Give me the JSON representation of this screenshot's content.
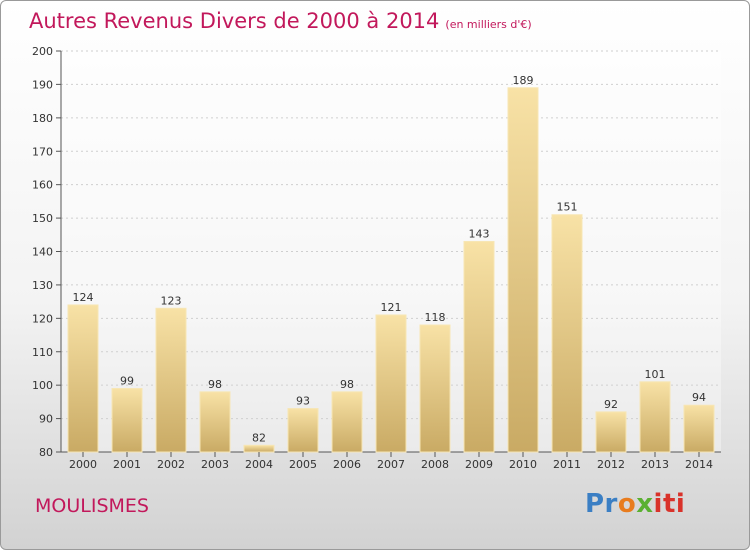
{
  "chart_data": {
    "type": "bar",
    "title": "Autres Revenus Divers de 2000 à 2014",
    "subtitle": "(en milliers d'€)",
    "categories": [
      "2000",
      "2001",
      "2002",
      "2003",
      "2004",
      "2005",
      "2006",
      "2007",
      "2008",
      "2009",
      "2010",
      "2011",
      "2012",
      "2013",
      "2014"
    ],
    "values": [
      124,
      99,
      123,
      98,
      82,
      93,
      98,
      121,
      118,
      143,
      189,
      151,
      92,
      101,
      94
    ],
    "ylim": [
      80,
      200
    ],
    "yticks": [
      80,
      90,
      100,
      110,
      120,
      130,
      140,
      150,
      160,
      170,
      180,
      190,
      200
    ],
    "grid": true,
    "bar_color": "#f0d084"
  },
  "location": "MOULISMES",
  "logo": {
    "parts": [
      "Pr",
      "o",
      "x",
      "iti"
    ],
    "colors": [
      "#3b7fc4",
      "#e87c1e",
      "#5ab031",
      "#d9322a"
    ]
  }
}
